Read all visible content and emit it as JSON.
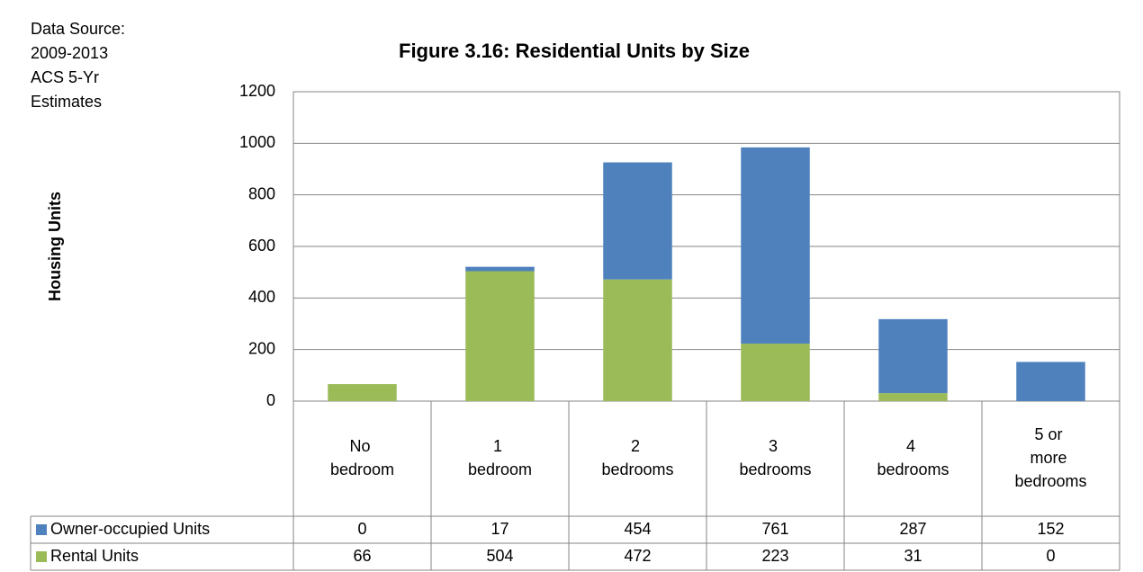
{
  "chart_data": {
    "type": "stacked-bar",
    "title": "Figure 3.16:  Residential Units by Size",
    "note": [
      "Data Source:",
      "2009-2013",
      "ACS 5-Yr",
      "Estimates"
    ],
    "ylabel": "Housing Units",
    "categories": [
      "No bedroom",
      "1 bedroom",
      "2 bedrooms",
      "3 bedrooms",
      "4 bedrooms",
      "5 or more bedrooms"
    ],
    "series": [
      {
        "name": "Owner-occupied Units",
        "color": "#4f81bd",
        "values": [
          0,
          17,
          454,
          761,
          287,
          152
        ]
      },
      {
        "name": "Rental Units",
        "color": "#9bbb59",
        "values": [
          66,
          504,
          472,
          223,
          31,
          0
        ]
      }
    ],
    "ylim": [
      0,
      1200
    ],
    "yticks": [
      0,
      200,
      400,
      600,
      800,
      1000,
      1200
    ],
    "grid": true,
    "data_table": true
  }
}
